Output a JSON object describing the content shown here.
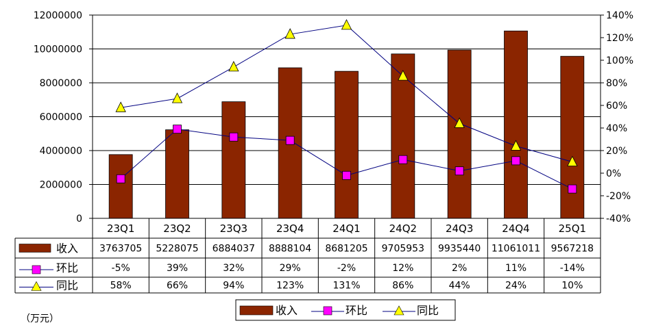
{
  "chart_data": {
    "type": "bar",
    "categories": [
      "23Q1",
      "23Q2",
      "23Q3",
      "23Q4",
      "24Q1",
      "24Q2",
      "24Q3",
      "24Q4",
      "25Q1"
    ],
    "series": [
      {
        "name": "收入",
        "kind": "bar",
        "axis": "left",
        "color": "#8B2500",
        "values": [
          3763705,
          5228075,
          6884037,
          8888104,
          8681205,
          9705953,
          9935440,
          11061011,
          9567218
        ],
        "labels": [
          "3763705",
          "5228075",
          "6884037",
          "8888104",
          "8681205",
          "9705953",
          "9935440",
          "11061011",
          "9567218"
        ]
      },
      {
        "name": "环比",
        "kind": "line",
        "axis": "right",
        "marker": "square",
        "color": "#FF00FF",
        "line_color": "#000080",
        "values": [
          -5,
          39,
          32,
          29,
          -2,
          12,
          2,
          11,
          -14
        ],
        "labels": [
          "-5%",
          "39%",
          "32%",
          "29%",
          "-2%",
          "12%",
          "2%",
          "11%",
          "-14%"
        ]
      },
      {
        "name": "同比",
        "kind": "line",
        "axis": "right",
        "marker": "triangle",
        "color": "#FFFF00",
        "line_color": "#000080",
        "values": [
          58,
          66,
          94,
          123,
          131,
          86,
          44,
          24,
          10
        ],
        "labels": [
          "58%",
          "66%",
          "94%",
          "123%",
          "131%",
          "86%",
          "44%",
          "24%",
          "10%"
        ]
      }
    ],
    "y_left": {
      "min": 0,
      "max": 12000000,
      "step": 2000000,
      "ticks": [
        "0",
        "2000000",
        "4000000",
        "6000000",
        "8000000",
        "10000000",
        "12000000"
      ]
    },
    "y_right": {
      "min": -40,
      "max": 140,
      "step": 20,
      "ticks": [
        "-40%",
        "-20%",
        "0%",
        "20%",
        "40%",
        "60%",
        "80%",
        "100%",
        "120%",
        "140%"
      ]
    },
    "grid": true,
    "legend_position": "bottom",
    "unit_note": "（万元）",
    "has_data_table": true
  }
}
